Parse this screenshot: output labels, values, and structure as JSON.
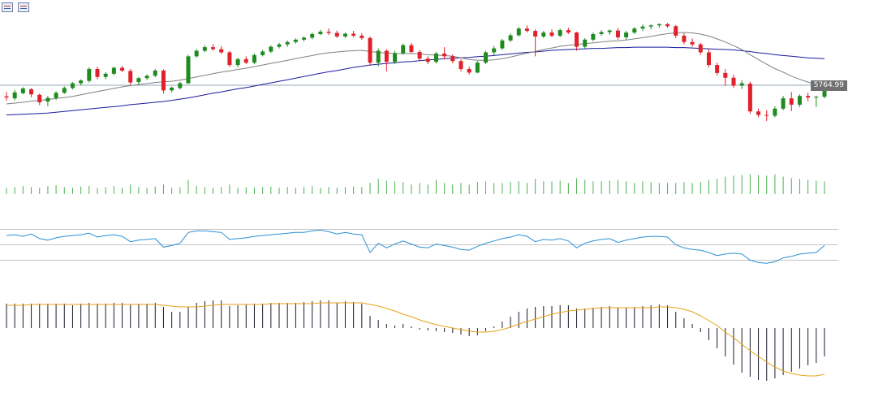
{
  "toolbar": {
    "icons": [
      "indicator-list-icon",
      "chart-properties-icon"
    ]
  },
  "last_price_label": "5764.99",
  "colors": {
    "bull": "#1f8a1f",
    "bear": "#e0202a",
    "ma_fast": "#808080",
    "ma_slow": "#1a1a9c",
    "volume": "#4caf50",
    "rsi": "#2b8fd6",
    "rsi_levels": "#b0b0b0",
    "macd_hist": "#1a1a2e",
    "macd_signal": "#e8a317",
    "price_line": "#6e8aa3"
  },
  "chart_data": [
    {
      "type": "candlestick",
      "panel": "price",
      "last_price": 5764.99,
      "ylim": [
        5550,
        5980
      ],
      "ohlc": [
        [
          5737,
          5748,
          5726,
          5734
        ],
        [
          5732,
          5753,
          5727,
          5747
        ],
        [
          5745,
          5760,
          5742,
          5757
        ],
        [
          5755,
          5758,
          5735,
          5742
        ],
        [
          5741,
          5744,
          5715,
          5722
        ],
        [
          5724,
          5738,
          5712,
          5733
        ],
        [
          5733,
          5750,
          5728,
          5746
        ],
        [
          5746,
          5762,
          5743,
          5758
        ],
        [
          5758,
          5773,
          5754,
          5770
        ],
        [
          5770,
          5780,
          5765,
          5777
        ],
        [
          5776,
          5810,
          5772,
          5806
        ],
        [
          5806,
          5812,
          5780,
          5786
        ],
        [
          5786,
          5798,
          5780,
          5794
        ],
        [
          5794,
          5812,
          5790,
          5809
        ],
        [
          5809,
          5814,
          5798,
          5802
        ],
        [
          5801,
          5806,
          5766,
          5772
        ],
        [
          5773,
          5786,
          5766,
          5783
        ],
        [
          5783,
          5792,
          5778,
          5789
        ],
        [
          5789,
          5806,
          5785,
          5802
        ],
        [
          5802,
          5805,
          5744,
          5752
        ],
        [
          5752,
          5762,
          5747,
          5759
        ],
        [
          5758,
          5774,
          5754,
          5770
        ],
        [
          5770,
          5842,
          5768,
          5838
        ],
        [
          5838,
          5856,
          5834,
          5852
        ],
        [
          5852,
          5866,
          5848,
          5861
        ],
        [
          5861,
          5869,
          5852,
          5856
        ],
        [
          5856,
          5864,
          5844,
          5848
        ],
        [
          5848,
          5852,
          5811,
          5816
        ],
        [
          5816,
          5834,
          5810,
          5831
        ],
        [
          5831,
          5838,
          5818,
          5822
        ],
        [
          5822,
          5845,
          5818,
          5841
        ],
        [
          5841,
          5854,
          5838,
          5850
        ],
        [
          5850,
          5866,
          5846,
          5862
        ],
        [
          5862,
          5872,
          5858,
          5868
        ],
        [
          5868,
          5878,
          5862,
          5874
        ],
        [
          5874,
          5883,
          5870,
          5880
        ],
        [
          5880,
          5888,
          5876,
          5885
        ],
        [
          5885,
          5898,
          5881,
          5894
        ],
        [
          5894,
          5905,
          5891,
          5900
        ],
        [
          5900,
          5908,
          5892,
          5897
        ],
        [
          5897,
          5903,
          5884,
          5888
        ],
        [
          5888,
          5898,
          5884,
          5895
        ],
        [
          5895,
          5902,
          5886,
          5890
        ],
        [
          5890,
          5896,
          5880,
          5884
        ],
        [
          5884,
          5888,
          5816,
          5822
        ],
        [
          5822,
          5858,
          5812,
          5852
        ],
        [
          5852,
          5856,
          5800,
          5824
        ],
        [
          5824,
          5852,
          5818,
          5846
        ],
        [
          5846,
          5870,
          5842,
          5866
        ],
        [
          5866,
          5872,
          5845,
          5849
        ],
        [
          5849,
          5854,
          5826,
          5832
        ],
        [
          5832,
          5838,
          5818,
          5824
        ],
        [
          5824,
          5849,
          5820,
          5845
        ],
        [
          5845,
          5861,
          5830,
          5838
        ],
        [
          5838,
          5843,
          5820,
          5826
        ],
        [
          5826,
          5831,
          5800,
          5806
        ],
        [
          5806,
          5812,
          5792,
          5797
        ],
        [
          5797,
          5826,
          5795,
          5822
        ],
        [
          5822,
          5852,
          5818,
          5848
        ],
        [
          5848,
          5864,
          5840,
          5858
        ],
        [
          5858,
          5882,
          5854,
          5878
        ],
        [
          5878,
          5896,
          5874,
          5891
        ],
        [
          5891,
          5912,
          5888,
          5908
        ],
        [
          5908,
          5916,
          5898,
          5902
        ],
        [
          5902,
          5906,
          5838,
          5888
        ],
        [
          5888,
          5902,
          5884,
          5898
        ],
        [
          5898,
          5906,
          5886,
          5890
        ],
        [
          5890,
          5908,
          5886,
          5904
        ],
        [
          5904,
          5910,
          5894,
          5898
        ],
        [
          5898,
          5900,
          5852,
          5862
        ],
        [
          5862,
          5884,
          5858,
          5880
        ],
        [
          5880,
          5898,
          5876,
          5894
        ],
        [
          5894,
          5904,
          5890,
          5899
        ],
        [
          5899,
          5906,
          5892,
          5903
        ],
        [
          5903,
          5909,
          5880,
          5886
        ],
        [
          5886,
          5902,
          5880,
          5898
        ],
        [
          5898,
          5912,
          5894,
          5908
        ],
        [
          5908,
          5918,
          5902,
          5913
        ],
        [
          5913,
          5919,
          5906,
          5916
        ],
        [
          5916,
          5921,
          5910,
          5919
        ],
        [
          5919,
          5922,
          5910,
          5914
        ],
        [
          5914,
          5917,
          5884,
          5890
        ],
        [
          5890,
          5896,
          5868,
          5874
        ],
        [
          5874,
          5883,
          5862,
          5868
        ],
        [
          5868,
          5872,
          5842,
          5848
        ],
        [
          5848,
          5856,
          5810,
          5816
        ],
        [
          5816,
          5822,
          5790,
          5796
        ],
        [
          5796,
          5806,
          5763,
          5784
        ],
        [
          5784,
          5792,
          5758,
          5764
        ],
        [
          5764,
          5778,
          5756,
          5770
        ],
        [
          5769,
          5774,
          5693,
          5699
        ],
        [
          5699,
          5706,
          5684,
          5690
        ],
        [
          5690,
          5702,
          5675,
          5688
        ],
        [
          5688,
          5712,
          5684,
          5706
        ],
        [
          5706,
          5738,
          5702,
          5732
        ],
        [
          5732,
          5748,
          5700,
          5716
        ],
        [
          5716,
          5742,
          5710,
          5738
        ],
        [
          5738,
          5746,
          5724,
          5734
        ],
        [
          5734,
          5738,
          5710,
          5736
        ],
        [
          5736,
          5768,
          5732,
          5764.99
        ]
      ],
      "ma_fast": [
        5718,
        5720,
        5722,
        5725,
        5727,
        5729,
        5732,
        5734,
        5737,
        5741,
        5745,
        5749,
        5753,
        5757,
        5761,
        5764,
        5767,
        5769,
        5772,
        5774,
        5775,
        5778,
        5782,
        5786,
        5790,
        5794,
        5798,
        5801,
        5805,
        5808,
        5812,
        5816,
        5820,
        5824,
        5828,
        5832,
        5836,
        5840,
        5844,
        5847,
        5849,
        5851,
        5852,
        5853,
        5850,
        5848,
        5846,
        5845,
        5845,
        5845,
        5844,
        5842,
        5841,
        5840,
        5838,
        5834,
        5830,
        5828,
        5828,
        5829,
        5832,
        5836,
        5841,
        5846,
        5850,
        5855,
        5859,
        5863,
        5866,
        5868,
        5870,
        5872,
        5874,
        5876,
        5877,
        5879,
        5882,
        5885,
        5888,
        5892,
        5895,
        5897,
        5898,
        5897,
        5894,
        5889,
        5882,
        5874,
        5865,
        5855,
        5842,
        5830,
        5818,
        5807,
        5798,
        5788,
        5780,
        5773,
        5766,
        5762
      ],
      "ma_slow": [
        5690,
        5691,
        5692,
        5693,
        5694,
        5695,
        5697,
        5699,
        5701,
        5703,
        5705,
        5707,
        5709,
        5711,
        5713,
        5716,
        5718,
        5720,
        5722,
        5724,
        5727,
        5730,
        5733,
        5737,
        5741,
        5745,
        5748,
        5752,
        5756,
        5759,
        5763,
        5767,
        5771,
        5775,
        5779,
        5783,
        5787,
        5791,
        5795,
        5799,
        5802,
        5806,
        5810,
        5813,
        5816,
        5818,
        5820,
        5822,
        5824,
        5825,
        5827,
        5829,
        5830,
        5832,
        5833,
        5834,
        5835,
        5837,
        5838,
        5840,
        5842,
        5844,
        5846,
        5848,
        5849,
        5851,
        5853,
        5854,
        5855,
        5856,
        5857,
        5858,
        5858,
        5859,
        5860,
        5860,
        5861,
        5861,
        5861,
        5861,
        5861,
        5860,
        5860,
        5859,
        5858,
        5857,
        5856,
        5855,
        5854,
        5852,
        5850,
        5847,
        5845,
        5842,
        5840,
        5838,
        5836,
        5834,
        5833,
        5832
      ]
    },
    {
      "type": "bar",
      "panel": "volume",
      "ylim": [
        0,
        100
      ],
      "values": [
        20,
        22,
        25,
        22,
        20,
        25,
        28,
        22,
        20,
        24,
        26,
        20,
        22,
        25,
        20,
        30,
        22,
        20,
        24,
        30,
        20,
        22,
        45,
        25,
        22,
        20,
        22,
        30,
        20,
        22,
        20,
        22,
        24,
        20,
        22,
        20,
        22,
        25,
        20,
        22,
        20,
        22,
        24,
        22,
        35,
        48,
        42,
        40,
        38,
        30,
        35,
        30,
        45,
        35,
        30,
        35,
        30,
        38,
        40,
        35,
        35,
        38,
        40,
        35,
        48,
        40,
        40,
        42,
        35,
        50,
        45,
        40,
        40,
        42,
        45,
        40,
        35,
        40,
        38,
        35,
        35,
        35,
        38,
        35,
        38,
        45,
        48,
        55,
        58,
        60,
        62,
        60,
        58,
        62,
        55,
        50,
        48,
        45,
        42,
        40
      ]
    },
    {
      "type": "line",
      "panel": "rsi",
      "ylim": [
        0,
        100
      ],
      "levels": [
        70,
        50,
        30
      ],
      "values": [
        62,
        63,
        61,
        64,
        58,
        56,
        59,
        61,
        62,
        63,
        65,
        60,
        62,
        63,
        61,
        54,
        56,
        57,
        58,
        47,
        49,
        52,
        66,
        68,
        68,
        67,
        66,
        57,
        58,
        59,
        61,
        62,
        63,
        64,
        65,
        66,
        66,
        68,
        69,
        67,
        64,
        66,
        64,
        63,
        40,
        52,
        46,
        51,
        55,
        51,
        47,
        46,
        51,
        49,
        47,
        44,
        43,
        48,
        52,
        55,
        58,
        60,
        63,
        61,
        54,
        57,
        56,
        58,
        55,
        46,
        52,
        55,
        57,
        58,
        53,
        56,
        58,
        60,
        61,
        61,
        60,
        50,
        46,
        44,
        43,
        40,
        36,
        38,
        39,
        38,
        30,
        27,
        26,
        28,
        33,
        35,
        38,
        39,
        40,
        49
      ]
    },
    {
      "type": "bar",
      "panel": "macd",
      "ylim": [
        -90,
        50
      ],
      "histogram": [
        30,
        30,
        30,
        30,
        30,
        30,
        30,
        30,
        28,
        30,
        31,
        30,
        30,
        31,
        31,
        29,
        30,
        30,
        31,
        26,
        20,
        20,
        26,
        31,
        33,
        34,
        34,
        27,
        28,
        29,
        30,
        30,
        31,
        31,
        31,
        31,
        32,
        33,
        34,
        34,
        31,
        33,
        32,
        30,
        15,
        10,
        5,
        3,
        5,
        2,
        -2,
        -3,
        -4,
        -5,
        -6,
        -8,
        -10,
        -9,
        -4,
        2,
        8,
        14,
        20,
        24,
        26,
        27,
        27,
        28,
        28,
        24,
        24,
        25,
        26,
        27,
        25,
        25,
        26,
        27,
        28,
        29,
        28,
        20,
        12,
        5,
        -5,
        -15,
        -25,
        -35,
        -45,
        -55,
        -60,
        -64,
        -65,
        -62,
        -58,
        -54,
        -50,
        -46,
        -43,
        -35
      ],
      "signal": [
        28,
        28,
        28,
        29,
        29,
        29,
        29,
        29,
        29,
        29,
        29,
        29,
        29,
        29,
        29,
        29,
        29,
        29,
        29,
        28,
        27,
        26,
        26,
        26,
        27,
        28,
        29,
        29,
        29,
        29,
        29,
        29,
        30,
        30,
        30,
        30,
        30,
        30,
        31,
        31,
        31,
        31,
        31,
        31,
        29,
        27,
        24,
        21,
        17,
        14,
        10,
        7,
        4,
        2,
        0,
        -2,
        -4,
        -5,
        -5,
        -4,
        -2,
        1,
        5,
        8,
        11,
        14,
        17,
        19,
        21,
        22,
        23,
        24,
        25,
        25,
        25,
        25,
        25,
        25,
        25,
        26,
        26,
        25,
        23,
        20,
        15,
        9,
        3,
        -5,
        -12,
        -20,
        -28,
        -35,
        -42,
        -48,
        -53,
        -56,
        -58,
        -59,
        -59,
        -57
      ]
    }
  ]
}
